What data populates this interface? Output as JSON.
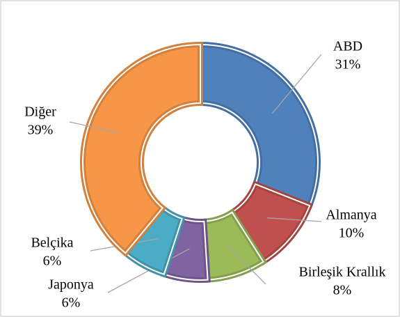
{
  "chart_data": {
    "type": "donut",
    "categories": [
      "ABD",
      "Almanya",
      "Birleşik Krallık",
      "Japonya",
      "Belçika",
      "Diğer"
    ],
    "values": [
      31,
      10,
      8,
      6,
      6,
      39
    ],
    "value_labels": [
      "31%",
      "10%",
      "8%",
      "6%",
      "6%",
      "39%"
    ],
    "colors": [
      "#4f81bd",
      "#c0504d",
      "#9bbb59",
      "#8064a2",
      "#4bacc6",
      "#f79646"
    ]
  }
}
